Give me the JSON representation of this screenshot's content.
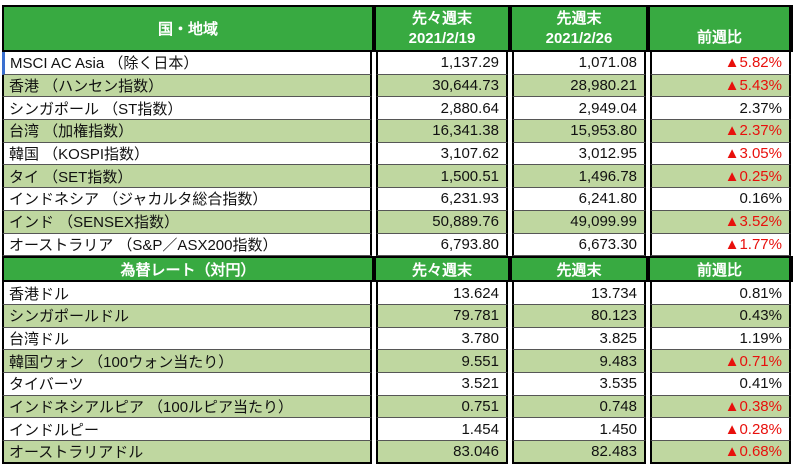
{
  "colors": {
    "header_green": "#38aa41",
    "row_green": "#bfd7a0",
    "negative_red": "#e8100c",
    "selected_blue": "#3a6fd0"
  },
  "table": {
    "sections": [
      {
        "name": "stock-indices",
        "header": {
          "label": "国・地域",
          "col_prev2": "先々週末",
          "col_prev2_date": "2021/2/19",
          "col_prev": "先週末",
          "col_prev_date": "2021/2/26",
          "col_change": "前週比"
        },
        "rows": [
          {
            "label": "MSCI AC Asia （除く日本）",
            "prev2": "1,137.29",
            "prev": "1,071.08",
            "change": "▲5.82%",
            "red": true,
            "selected": true
          },
          {
            "label": "香港 （ハンセン指数）",
            "prev2": "30,644.73",
            "prev": "28,980.21",
            "change": "▲5.43%",
            "red": true
          },
          {
            "label": "シンガポール （ST指数）",
            "prev2": "2,880.64",
            "prev": "2,949.04",
            "change": "2.37%",
            "red": false
          },
          {
            "label": "台湾 （加権指数）",
            "prev2": "16,341.38",
            "prev": "15,953.80",
            "change": "▲2.37%",
            "red": true
          },
          {
            "label": "韓国 （KOSPI指数）",
            "prev2": "3,107.62",
            "prev": "3,012.95",
            "change": "▲3.05%",
            "red": true
          },
          {
            "label": "タイ （SET指数）",
            "prev2": "1,500.51",
            "prev": "1,496.78",
            "change": "▲0.25%",
            "red": true
          },
          {
            "label": "インドネシア （ジャカルタ総合指数）",
            "prev2": "6,231.93",
            "prev": "6,241.80",
            "change": "0.16%",
            "red": false
          },
          {
            "label": "インド （SENSEX指数）",
            "prev2": "50,889.76",
            "prev": "49,099.99",
            "change": "▲3.52%",
            "red": true
          },
          {
            "label": "オーストラリア （S&P／ASX200指数）",
            "prev2": "6,793.80",
            "prev": "6,673.30",
            "change": "▲1.77%",
            "red": true
          }
        ]
      },
      {
        "name": "fx-rates",
        "header": {
          "label": "為替レート（対円）",
          "col_prev2": "先々週末",
          "col_prev": "先週末",
          "col_change": "前週比"
        },
        "rows": [
          {
            "label": "香港ドル",
            "prev2": "13.624",
            "prev": "13.734",
            "change": "0.81%",
            "red": false
          },
          {
            "label": "シンガポールドル",
            "prev2": "79.781",
            "prev": "80.123",
            "change": "0.43%",
            "red": false
          },
          {
            "label": "台湾ドル",
            "prev2": "3.780",
            "prev": "3.825",
            "change": "1.19%",
            "red": false
          },
          {
            "label": "韓国ウォン （100ウォン当たり）",
            "prev2": "9.551",
            "prev": "9.483",
            "change": "▲0.71%",
            "red": true
          },
          {
            "label": "タイバーツ",
            "prev2": "3.521",
            "prev": "3.535",
            "change": "0.41%",
            "red": false
          },
          {
            "label": "インドネシアルピア （100ルピア当たり）",
            "prev2": "0.751",
            "prev": "0.748",
            "change": "▲0.38%",
            "red": true
          },
          {
            "label": "インドルピー",
            "prev2": "1.454",
            "prev": "1.450",
            "change": "▲0.28%",
            "red": true
          },
          {
            "label": "オーストラリアドル",
            "prev2": "83.046",
            "prev": "82.483",
            "change": "▲0.68%",
            "red": true
          }
        ]
      }
    ]
  }
}
